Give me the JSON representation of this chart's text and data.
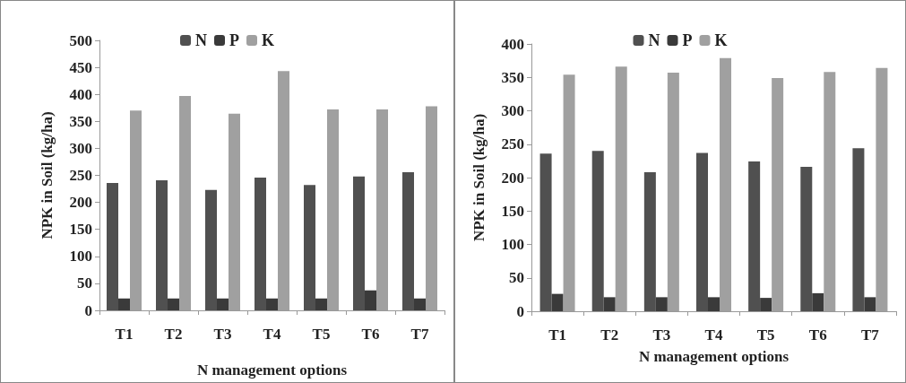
{
  "chart_data": [
    {
      "type": "bar",
      "categories": [
        "T1",
        "T2",
        "T3",
        "T4",
        "T5",
        "T6",
        "T7"
      ],
      "xlabel": "N management options",
      "ylabel": "NPK in Soil (kg/ha)",
      "ylim": [
        0,
        500
      ],
      "yticks": [
        0,
        50,
        100,
        150,
        200,
        250,
        300,
        350,
        400,
        450,
        500
      ],
      "grid": false,
      "legend": "top",
      "series": [
        {
          "name": "N",
          "color": "#505050",
          "values": [
            236,
            241,
            223,
            246,
            232,
            248,
            256
          ]
        },
        {
          "name": "P",
          "color": "#3a3a3a",
          "values": [
            22,
            22,
            22,
            22,
            22,
            37,
            22
          ]
        },
        {
          "name": "K",
          "color": "#a0a0a0",
          "values": [
            370,
            397,
            364,
            443,
            372,
            372,
            378
          ]
        }
      ]
    },
    {
      "type": "bar",
      "categories": [
        "T1",
        "T2",
        "T3",
        "T4",
        "T5",
        "T6",
        "T7"
      ],
      "xlabel": "N management options",
      "ylabel": "NPK in Soil (kg/ha)",
      "ylim": [
        0,
        400
      ],
      "yticks": [
        0,
        50,
        100,
        150,
        200,
        250,
        300,
        350,
        400
      ],
      "grid": false,
      "legend": "top",
      "series": [
        {
          "name": "N",
          "color": "#505050",
          "values": [
            236,
            240,
            208,
            237,
            224,
            216,
            244
          ]
        },
        {
          "name": "P",
          "color": "#3a3a3a",
          "values": [
            26,
            21,
            21,
            21,
            20,
            27,
            21
          ]
        },
        {
          "name": "K",
          "color": "#a0a0a0",
          "values": [
            354,
            366,
            357,
            379,
            349,
            358,
            364
          ]
        }
      ]
    }
  ]
}
